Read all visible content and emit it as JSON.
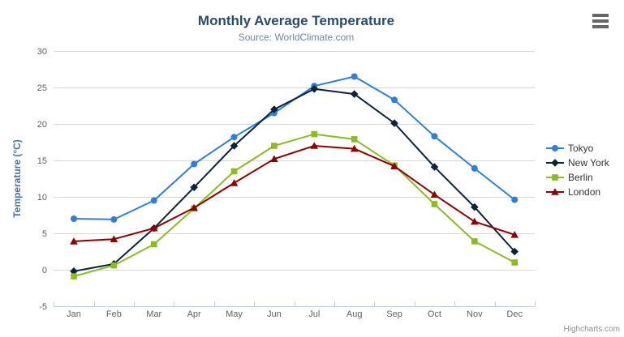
{
  "header": {
    "title": "Monthly Average Temperature",
    "subtitle": "Source: WorldClimate.com"
  },
  "credits": {
    "label": "Highcharts.com"
  },
  "colors": {
    "grid": "#d8d8d8",
    "axis_line": "#c0d0e0",
    "tick_label": "#606060",
    "title": "#274b6d",
    "subtitle": "#6d869f",
    "axis_title": "#4572a7",
    "legend_text": "#333333",
    "credits": "#909090",
    "menu_icon": "#666666"
  },
  "chart_data": {
    "type": "line",
    "title": "Monthly Average Temperature",
    "subtitle": "Source: WorldClimate.com",
    "categories": [
      "Jan",
      "Feb",
      "Mar",
      "Apr",
      "May",
      "Jun",
      "Jul",
      "Aug",
      "Sep",
      "Oct",
      "Nov",
      "Dec"
    ],
    "series": [
      {
        "name": "Tokyo",
        "color": "#2f7ed8",
        "marker": "circle",
        "values": [
          7.0,
          6.9,
          9.5,
          14.5,
          18.2,
          21.5,
          25.2,
          26.5,
          23.3,
          18.3,
          13.9,
          9.6
        ]
      },
      {
        "name": "New York",
        "color": "#0d233a",
        "marker": "diamond",
        "values": [
          -0.2,
          0.8,
          5.7,
          11.3,
          17.0,
          22.0,
          24.8,
          24.1,
          20.1,
          14.1,
          8.6,
          2.5
        ]
      },
      {
        "name": "Berlin",
        "color": "#8bbc21",
        "marker": "square",
        "values": [
          -0.9,
          0.6,
          3.5,
          8.4,
          13.5,
          17.0,
          18.6,
          17.9,
          14.3,
          9.0,
          3.9,
          1.0
        ]
      },
      {
        "name": "London",
        "color": "#910000",
        "marker": "triangle",
        "values": [
          3.9,
          4.2,
          5.7,
          8.5,
          11.9,
          15.2,
          17.0,
          16.6,
          14.2,
          10.3,
          6.6,
          4.8
        ]
      }
    ],
    "xlabel": "",
    "ylabel": "Temperature (°C)",
    "ylim": [
      -5,
      30
    ],
    "yticks": [
      -5,
      0,
      5,
      10,
      15,
      20,
      25,
      30
    ],
    "grid": true,
    "legend_position": "right"
  }
}
